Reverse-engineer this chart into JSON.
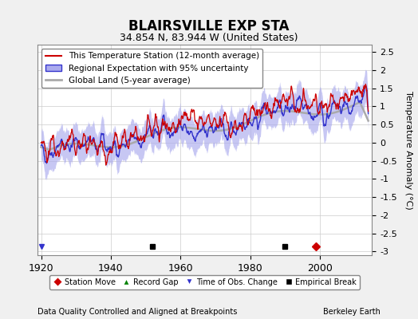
{
  "title": "BLAIRSVILLE EXP STA",
  "subtitle": "34.854 N, 83.944 W (United States)",
  "xlabel_left": "Data Quality Controlled and Aligned at Breakpoints",
  "xlabel_right": "Berkeley Earth",
  "ylabel": "Temperature Anomaly (°C)",
  "xlim": [
    1919,
    2015
  ],
  "ylim": [
    -3.1,
    2.7
  ],
  "yticks": [
    -3,
    -2.5,
    -2,
    -1.5,
    -1,
    -0.5,
    0,
    0.5,
    1,
    1.5,
    2,
    2.5
  ],
  "xticks": [
    1920,
    1940,
    1960,
    1980,
    2000
  ],
  "bg_color": "#f0f0f0",
  "plot_bg_color": "#ffffff",
  "red_color": "#cc0000",
  "blue_color": "#3333cc",
  "blue_fill_color": "#aaaaee",
  "gray_color": "#aaaaaa",
  "station_move_year": 1999,
  "obs_change_years": [
    1920
  ],
  "empirical_break_years": [
    1952,
    1990
  ],
  "seed": 42
}
